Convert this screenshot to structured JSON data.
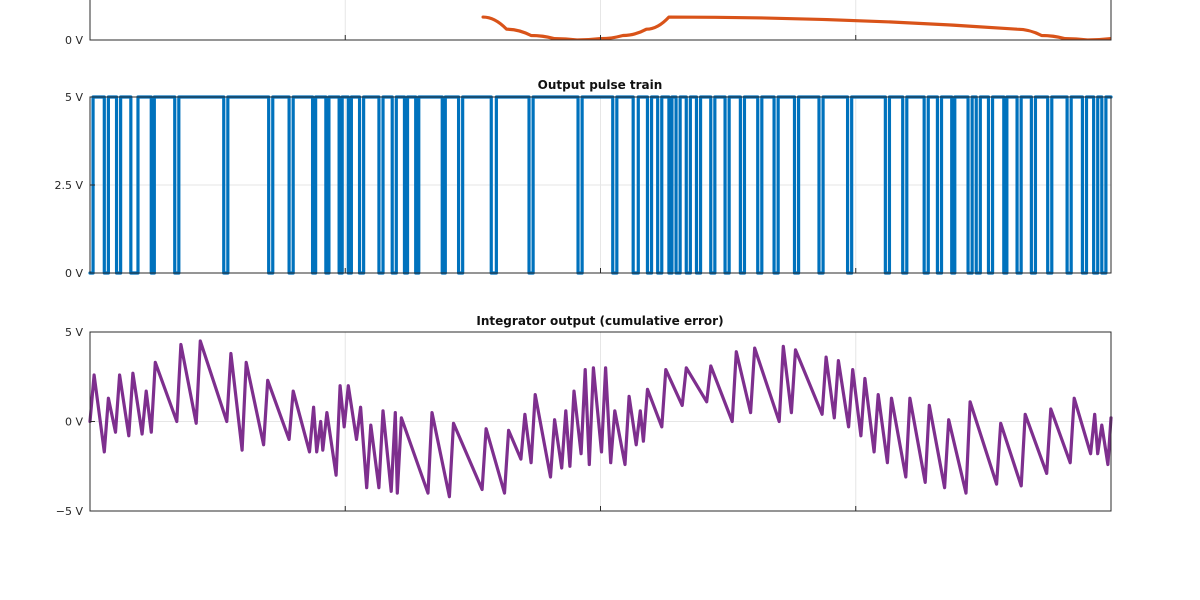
{
  "chart_data": [
    {
      "type": "line",
      "title": "",
      "xlabel": "",
      "ylabel": "",
      "ylim": [
        0,
        5
      ],
      "yticks": [
        {
          "value": 0,
          "label": "0 V"
        }
      ],
      "grid": true,
      "color": "#d95319",
      "series": [
        {
          "values": [
            2.55,
            1.2,
            0.5,
            0.15,
            0.0,
            0.15,
            0.5,
            1.2,
            2.55,
            1.2,
            0.5,
            0.15,
            0.0,
            0.15,
            0.5,
            1.2,
            2.55
          ],
          "x": [
            0.385,
            0.408,
            0.432,
            0.455,
            0.477,
            0.5,
            0.522,
            0.545,
            0.567,
            0.908,
            0.932,
            0.955,
            0.977,
            1.0,
            1.022,
            1.045,
            1.067
          ]
        }
      ]
    },
    {
      "type": "line",
      "title": "Output pulse train",
      "xlabel": "",
      "ylabel": "",
      "ylim": [
        0,
        5
      ],
      "yticks": [
        {
          "value": 0,
          "label": "0 V"
        },
        {
          "value": 2.5,
          "label": "2.5 V"
        },
        {
          "value": 5,
          "label": "5 V"
        }
      ],
      "grid": true,
      "color": "#0072bd",
      "series": [
        {
          "edges": [
            0.003,
            0.014,
            0.018,
            0.026,
            0.03,
            0.04,
            0.047,
            0.06,
            0.063,
            0.083,
            0.087,
            0.131,
            0.135,
            0.175,
            0.179,
            0.195,
            0.199,
            0.218,
            0.221,
            0.231,
            0.234,
            0.244,
            0.247,
            0.253,
            0.256,
            0.264,
            0.268,
            0.283,
            0.287,
            0.296,
            0.3,
            0.308,
            0.311,
            0.319,
            0.322,
            0.345,
            0.348,
            0.361,
            0.365,
            0.393,
            0.398,
            0.43,
            0.434,
            0.478,
            0.482,
            0.512,
            0.516,
            0.532,
            0.537,
            0.546,
            0.55,
            0.556,
            0.56,
            0.567,
            0.57,
            0.574,
            0.578,
            0.584,
            0.588,
            0.594,
            0.598,
            0.608,
            0.612,
            0.622,
            0.626,
            0.637,
            0.641,
            0.654,
            0.658,
            0.67,
            0.674,
            0.69,
            0.694,
            0.714,
            0.718,
            0.742,
            0.746,
            0.779,
            0.783,
            0.796,
            0.8,
            0.817,
            0.821,
            0.83,
            0.834,
            0.844,
            0.847,
            0.86,
            0.864,
            0.868,
            0.872,
            0.88,
            0.884,
            0.895,
            0.898,
            0.908,
            0.912,
            0.922,
            0.926,
            0.938,
            0.942,
            0.957,
            0.961,
            0.972,
            0.976,
            0.983,
            0.987,
            0.991,
            0.995
          ]
        }
      ]
    },
    {
      "type": "line",
      "title": "Integrator output (cumulative error)",
      "xlabel": "",
      "ylabel": "",
      "ylim": [
        -5,
        5
      ],
      "yticks": [
        {
          "value": -5,
          "label": "−5 V"
        },
        {
          "value": 0,
          "label": "0 V"
        },
        {
          "value": 5,
          "label": "5 V"
        }
      ],
      "grid": true,
      "color": "#7e2f8e",
      "series": [
        {
          "x": [
            0.0,
            0.004,
            0.014,
            0.018,
            0.025,
            0.029,
            0.038,
            0.042,
            0.051,
            0.055,
            0.06,
            0.064,
            0.085,
            0.089,
            0.104,
            0.108,
            0.134,
            0.138,
            0.149,
            0.153,
            0.17,
            0.174,
            0.195,
            0.199,
            0.215,
            0.219,
            0.222,
            0.226,
            0.228,
            0.232,
            0.241,
            0.245,
            0.249,
            0.253,
            0.261,
            0.265,
            0.271,
            0.275,
            0.283,
            0.287,
            0.295,
            0.299,
            0.301,
            0.305,
            0.331,
            0.335,
            0.352,
            0.356,
            0.384,
            0.388,
            0.406,
            0.41,
            0.422,
            0.426,
            0.432,
            0.436,
            0.451,
            0.455,
            0.462,
            0.466,
            0.47,
            0.474,
            0.481,
            0.485,
            0.489,
            0.493,
            0.501,
            0.505,
            0.51,
            0.514,
            0.524,
            0.528,
            0.535,
            0.539,
            0.542,
            0.546,
            0.56,
            0.564,
            0.58,
            0.584,
            0.604,
            0.608,
            0.629,
            0.633,
            0.647,
            0.651,
            0.675,
            0.679,
            0.687,
            0.691,
            0.717,
            0.721,
            0.729,
            0.733,
            0.743,
            0.747,
            0.755,
            0.759,
            0.768,
            0.772,
            0.781,
            0.785,
            0.799,
            0.803,
            0.818,
            0.822,
            0.837,
            0.841,
            0.858,
            0.862,
            0.888,
            0.892,
            0.912,
            0.916,
            0.937,
            0.941,
            0.96,
            0.964,
            0.98,
            0.984,
            0.987,
            0.991,
            0.997,
            1.0
          ],
          "values": [
            0.0,
            2.6,
            -1.7,
            1.3,
            -0.6,
            2.6,
            -0.8,
            2.7,
            -0.7,
            1.7,
            -0.6,
            3.3,
            0.0,
            4.3,
            -0.1,
            4.5,
            0.0,
            3.8,
            -1.6,
            3.3,
            -1.3,
            2.3,
            -1.0,
            1.7,
            -1.7,
            0.8,
            -1.7,
            0.0,
            -1.6,
            0.5,
            -3.0,
            2.0,
            -0.3,
            2.0,
            -1.0,
            0.8,
            -3.7,
            -0.2,
            -3.7,
            0.6,
            -3.9,
            0.5,
            -4.0,
            0.2,
            -4.0,
            0.5,
            -4.2,
            -0.1,
            -3.8,
            -0.4,
            -4.0,
            -0.5,
            -2.1,
            0.4,
            -2.3,
            1.5,
            -3.1,
            0.1,
            -2.6,
            0.6,
            -2.5,
            1.7,
            -1.8,
            2.9,
            -2.4,
            3.0,
            -1.7,
            3.0,
            -2.3,
            0.6,
            -2.4,
            1.4,
            -1.3,
            0.6,
            -1.1,
            1.8,
            -0.3,
            2.9,
            0.9,
            3.0,
            1.1,
            3.1,
            0.0,
            3.9,
            0.5,
            4.1,
            0.0,
            4.2,
            0.5,
            4.0,
            0.4,
            3.6,
            0.2,
            3.4,
            -0.3,
            2.9,
            -0.8,
            2.4,
            -1.7,
            1.5,
            -2.3,
            1.3,
            -3.1,
            1.3,
            -3.4,
            0.9,
            -3.7,
            0.1,
            -4.0,
            1.1,
            -3.5,
            -0.1,
            -3.6,
            0.4,
            -2.9,
            0.7,
            -2.3,
            1.3,
            -1.8,
            0.4,
            -1.8,
            -0.2,
            -2.4,
            0.2
          ]
        }
      ]
    }
  ]
}
